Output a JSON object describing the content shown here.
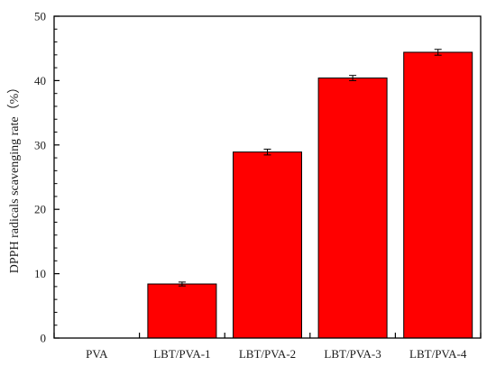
{
  "chart_data": {
    "type": "bar",
    "title": "",
    "xlabel": "",
    "ylabel": "DPPH radicals scavenging rate（%）",
    "categories": [
      "PVA",
      "LBT/PVA-1",
      "LBT/PVA-2",
      "LBT/PVA-3",
      "LBT/PVA-4"
    ],
    "values": [
      0,
      8.4,
      28.9,
      40.4,
      44.4
    ],
    "errors": [
      0,
      0.3,
      0.45,
      0.4,
      0.45
    ],
    "ylim": [
      0,
      50
    ],
    "yticks": [
      0,
      10,
      20,
      30,
      40,
      50
    ],
    "yticks_minor_step": 2,
    "grid": false,
    "legend": "none",
    "bar_color": "#ff0000",
    "bar_edge_color": "#000000",
    "axis_color": "#000000"
  }
}
